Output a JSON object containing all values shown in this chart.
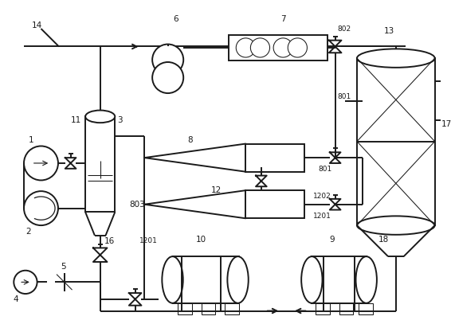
{
  "bg": "#ffffff",
  "lc": "#1a1a1a",
  "lw": 1.4,
  "tlw": 0.75,
  "fig_w": 5.66,
  "fig_h": 4.07,
  "dpi": 100
}
